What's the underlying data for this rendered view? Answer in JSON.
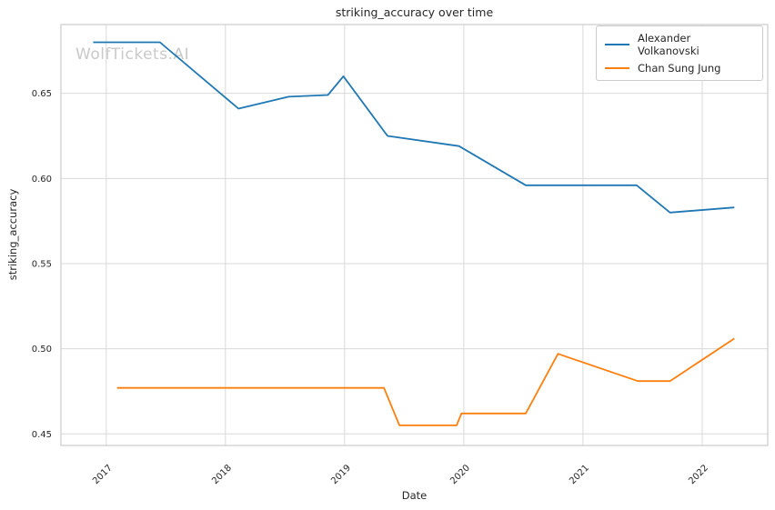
{
  "watermark": "WolfTickets.AI",
  "colors": {
    "background": "#ffffff",
    "grid": "#d9d9d9",
    "axis_border": "#cccccc",
    "text": "#262626",
    "watermark": "#c9c9c9"
  },
  "chart_data": {
    "type": "line",
    "title": "striking_accuracy over time",
    "xlabel": "Date",
    "ylabel": "striking_accuracy",
    "grid": true,
    "legend_position": "upper right",
    "xlim": [
      2016.62,
      2022.55
    ],
    "ylim": [
      0.4432,
      0.6904
    ],
    "x_ticks": [
      2017,
      2018,
      2019,
      2020,
      2021,
      2022
    ],
    "x_tick_labels": [
      "2017",
      "2018",
      "2019",
      "2020",
      "2021",
      "2022"
    ],
    "y_ticks": [
      0.45,
      0.5,
      0.55,
      0.6,
      0.65
    ],
    "y_tick_labels": [
      "0.45",
      "0.50",
      "0.55",
      "0.60",
      "0.65"
    ],
    "series": [
      {
        "name": "Alexander Volkanovski",
        "color": "#1f77b4",
        "x": [
          2016.89,
          2017.45,
          2018.11,
          2018.53,
          2018.86,
          2018.99,
          2019.36,
          2019.96,
          2020.52,
          2021.45,
          2021.73,
          2022.27
        ],
        "y": [
          0.68,
          0.68,
          0.641,
          0.648,
          0.649,
          0.66,
          0.625,
          0.619,
          0.596,
          0.596,
          0.58,
          0.583
        ]
      },
      {
        "name": "Chan Sung Jung",
        "color": "#ff7f0e",
        "x": [
          2017.09,
          2019.33,
          2019.46,
          2019.94,
          2019.98,
          2020.52,
          2020.79,
          2021.46,
          2021.73,
          2022.27
        ],
        "y": [
          0.477,
          0.477,
          0.455,
          0.455,
          0.462,
          0.462,
          0.497,
          0.481,
          0.481,
          0.506
        ]
      }
    ]
  }
}
